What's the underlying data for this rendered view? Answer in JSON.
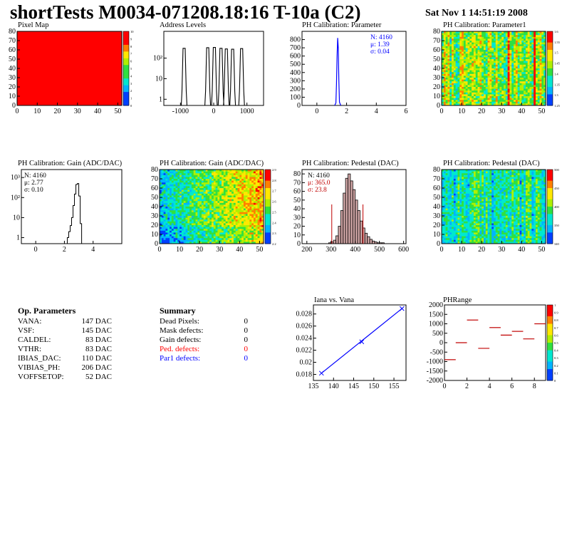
{
  "header": {
    "title": "shortTests M0034-071208.18:16 T-10a (C2)",
    "date": "Sat Nov  1 14:51:19 2008"
  },
  "colors": {
    "hist_line": "#000000",
    "fit_line": "#0000ff",
    "pedestal_fill": "#a04040",
    "red_marker": "#c00000",
    "defect_red": "#ff0000",
    "defect_blue": "#0000ff"
  },
  "chart_data": [
    {
      "id": "pixel-map",
      "type": "heatmap",
      "title": "Pixel Map",
      "xlim": [
        0,
        52
      ],
      "ylim": [
        0,
        80
      ],
      "xticks": [
        "0",
        "10",
        "20",
        "30",
        "40",
        "50"
      ],
      "yticks": [
        "0",
        "10",
        "20",
        "30",
        "40",
        "50",
        "60",
        "70",
        "80"
      ],
      "uniform_value": 10,
      "color_scale": [
        0,
        10
      ],
      "palette_ticks": [
        "10",
        "9",
        "8",
        "7",
        "6",
        "5",
        "4",
        "3",
        "2",
        "1",
        "0"
      ]
    },
    {
      "id": "address-levels",
      "type": "bar",
      "title": "Address Levels",
      "xlim": [
        -1500,
        1500
      ],
      "log_y": true,
      "xticks": [
        "-1000",
        "0",
        "1000"
      ],
      "yticks": [
        "1",
        "10",
        "10²"
      ],
      "peaks_x": [
        -890,
        -180,
        20,
        220,
        380,
        570,
        840
      ],
      "peaks_y": [
        300,
        320,
        330,
        300,
        280,
        270,
        290
      ]
    },
    {
      "id": "ph-calibration-parameter",
      "type": "bar",
      "title": "PH Calibration: Parameter",
      "xlim": [
        -1,
        6
      ],
      "ylim": [
        0,
        900
      ],
      "xticks": [
        "0",
        "2",
        "4",
        "6"
      ],
      "yticks": [
        "0",
        "100",
        "200",
        "300",
        "400",
        "500",
        "600",
        "700",
        "800"
      ],
      "x": [
        1.2,
        1.28,
        1.32,
        1.36,
        1.4,
        1.44,
        1.48,
        1.52,
        1.6
      ],
      "values": [
        2,
        30,
        260,
        600,
        820,
        700,
        300,
        40,
        3
      ],
      "stats": {
        "n": "N: 4160",
        "mu": "μ: 1.39",
        "sigma": "σ: 0.04"
      }
    },
    {
      "id": "ph-calibration-parameter1",
      "type": "heatmap",
      "title": "PH Calibration: Parameter1",
      "xlim": [
        0,
        52
      ],
      "ylim": [
        0,
        80
      ],
      "xticks": [
        "0",
        "10",
        "20",
        "30",
        "40",
        "50"
      ],
      "yticks": [
        "0",
        "10",
        "20",
        "30",
        "40",
        "50",
        "60",
        "70",
        "80"
      ],
      "color_scale": [
        1.25,
        1.6
      ],
      "palette_ticks": [
        "1.6",
        "1.55",
        "1.5",
        "1.45",
        "1.4",
        "1.35",
        "1.3",
        "1.25"
      ]
    },
    {
      "id": "ph-calibration-gain-hist",
      "type": "bar",
      "title": "PH Calibration: Gain (ADC/DAC)",
      "xlim": [
        -1,
        6
      ],
      "log_y": true,
      "xticks": [
        "0",
        "2",
        "4"
      ],
      "yticks": [
        "1",
        "10",
        "10²",
        "10³"
      ],
      "x": [
        2.2,
        2.3,
        2.4,
        2.5,
        2.6,
        2.7,
        2.8,
        2.9,
        3.0,
        3.1
      ],
      "values": [
        1,
        2,
        4,
        10,
        40,
        150,
        450,
        500,
        120,
        5
      ],
      "stats": {
        "n": "N: 4160",
        "mu": "μ: 2.77",
        "sigma": "σ: 0.10"
      }
    },
    {
      "id": "ph-calibration-gain-map",
      "type": "heatmap",
      "title": "PH Calibration: Gain (ADC/DAC)",
      "xlim": [
        0,
        52
      ],
      "ylim": [
        0,
        80
      ],
      "xticks": [
        "0",
        "10",
        "20",
        "30",
        "40",
        "50"
      ],
      "yticks": [
        "0",
        "10",
        "20",
        "30",
        "40",
        "50",
        "60",
        "70",
        "80"
      ],
      "color_scale": [
        2.2,
        2.9
      ],
      "palette_ticks": [
        "2.9",
        "2.8",
        "2.7",
        "2.6",
        "2.5",
        "2.4",
        "2.3",
        "2.2"
      ]
    },
    {
      "id": "ph-calibration-pedestal-hist",
      "type": "bar",
      "title": "PH Calibration: Pedestal (DAC)",
      "xlim": [
        180,
        610
      ],
      "ylim": [
        0,
        85
      ],
      "xticks": [
        "200",
        "300",
        "400",
        "500",
        "600"
      ],
      "yticks": [
        "0",
        "10",
        "20",
        "30",
        "40",
        "50",
        "60",
        "70",
        "80"
      ],
      "x": [
        290,
        300,
        310,
        320,
        330,
        340,
        350,
        360,
        370,
        380,
        390,
        400,
        410,
        420,
        430,
        440,
        450,
        460,
        470,
        480,
        490,
        500,
        510,
        520
      ],
      "values": [
        1,
        2,
        4,
        9,
        20,
        38,
        58,
        75,
        80,
        72,
        62,
        50,
        38,
        26,
        18,
        12,
        8,
        5,
        3,
        2,
        1,
        1,
        1,
        0
      ],
      "markers": [
        303,
        432
      ],
      "stats": {
        "n": "N: 4160",
        "mu": "μ: 365.0",
        "sigma": "σ: 23.8"
      }
    },
    {
      "id": "ph-calibration-pedestal-map",
      "type": "heatmap",
      "title": "PH Calibration: Pedestal (DAC)",
      "xlim": [
        0,
        52
      ],
      "ylim": [
        0,
        80
      ],
      "xticks": [
        "0",
        "10",
        "20",
        "30",
        "40",
        "50"
      ],
      "yticks": [
        "0",
        "10",
        "20",
        "30",
        "40",
        "50",
        "60",
        "70",
        "80"
      ],
      "color_scale": [
        340,
        500
      ],
      "palette_ticks": [
        "500",
        "450",
        "400",
        "350",
        "340"
      ]
    },
    {
      "id": "iana-vs-vana",
      "type": "line",
      "title": "Iana vs. Vana",
      "xlim": [
        135,
        158
      ],
      "ylim": [
        0.017,
        0.0295
      ],
      "xticks": [
        "135",
        "140",
        "145",
        "150",
        "155"
      ],
      "yticks": [
        "0.018",
        "0.02",
        "0.022",
        "0.024",
        "0.026",
        "0.028"
      ],
      "x": [
        137,
        147,
        157
      ],
      "y": [
        0.0182,
        0.0234,
        0.0289
      ]
    },
    {
      "id": "phrange",
      "type": "heatmap",
      "title": "PHRange",
      "xlim": [
        0,
        9
      ],
      "ylim": [
        -2000,
        2000
      ],
      "xticks": [
        "0",
        "2",
        "4",
        "6",
        "8"
      ],
      "yticks": [
        "2000",
        "1500",
        "1000",
        "500",
        "0",
        "-500",
        "-1000",
        "-1500",
        "-2000"
      ],
      "x": [
        0,
        1,
        2,
        3,
        4,
        5,
        6,
        7,
        8
      ],
      "y": [
        -900,
        0,
        1200,
        -300,
        800,
        400,
        600,
        200,
        1000
      ],
      "palette_ticks": [
        "1",
        "0.9",
        "0.8",
        "0.7",
        "0.6",
        "0.5",
        "0.4",
        "0.3",
        "0.2",
        "0.1",
        "0"
      ]
    }
  ],
  "op_params": {
    "title": "Op. Parameters",
    "items": [
      {
        "label": "VANA:",
        "value": "147 DAC"
      },
      {
        "label": "VSF:",
        "value": "145 DAC"
      },
      {
        "label": "CALDEL:",
        "value": "83 DAC"
      },
      {
        "label": "VTHR:",
        "value": "83 DAC"
      },
      {
        "label": "IBIAS_DAC:",
        "value": "110 DAC"
      },
      {
        "label": "VIBIAS_PH:",
        "value": "206 DAC"
      },
      {
        "label": "VOFFSETOP:",
        "value": "52 DAC"
      }
    ]
  },
  "summary": {
    "title": "Summary",
    "items": [
      {
        "label": "Dead Pixels:",
        "value": "0"
      },
      {
        "label": "Mask defects:",
        "value": "0"
      },
      {
        "label": "Gain defects:",
        "value": "0"
      },
      {
        "label": "Ped. defects:",
        "value": "0"
      },
      {
        "label": "Par1 defects:",
        "value": "0"
      }
    ]
  }
}
